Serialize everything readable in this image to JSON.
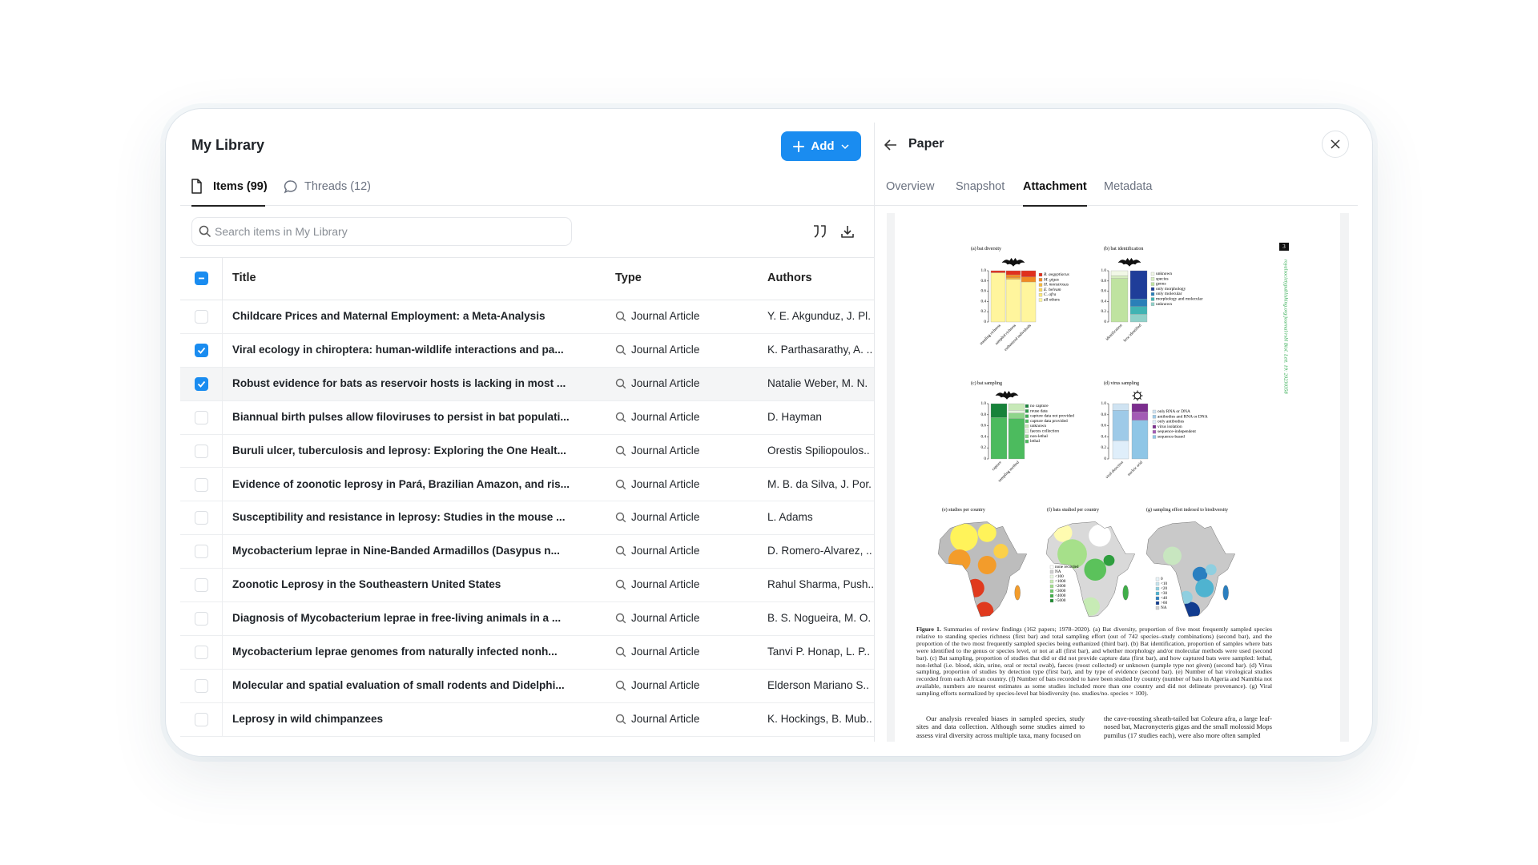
{
  "library": {
    "title": "My Library",
    "add_button": "Add",
    "tabs": [
      "Items (99)",
      "Threads (12)"
    ],
    "active_tab": 0,
    "search_placeholder": "Search items in My Library",
    "columns": [
      "Title",
      "Type",
      "Authors"
    ],
    "select_all_state": "partial",
    "hovered_row": 2,
    "rows": [
      {
        "title": "Childcare Prices and Maternal Employment: a Meta-Analysis",
        "type": "Journal Article",
        "authors": "Y. E. Akgunduz, J. Pl.",
        "checked": false
      },
      {
        "title": "Viral ecology in chiroptera: human-wildlife interactions and pa...",
        "type": "Journal Article",
        "authors": "K. Parthasarathy, A. ..",
        "checked": true
      },
      {
        "title": "Robust evidence for bats as reservoir hosts is lacking in most ...",
        "type": "Journal Article",
        "authors": "Natalie Weber, M. N.",
        "checked": true
      },
      {
        "title": "Biannual birth pulses allow filoviruses to persist in bat populati...",
        "type": "Journal Article",
        "authors": "D. Hayman",
        "checked": false
      },
      {
        "title": "Buruli ulcer, tuberculosis and leprosy: Exploring the One Healt...",
        "type": "Journal Article",
        "authors": "Orestis Spiliopoulos..",
        "checked": false
      },
      {
        "title": "Evidence of zoonotic leprosy in Pará, Brazilian Amazon, and ris...",
        "type": "Journal Article",
        "authors": "M. B. da Silva, J. Por.",
        "checked": false
      },
      {
        "title": "Susceptibility and resistance in leprosy: Studies in the mouse ...",
        "type": "Journal Article",
        "authors": "L. Adams",
        "checked": false
      },
      {
        "title": "Mycobacterium leprae in Nine-Banded Armadillos (Dasypus n...",
        "type": "Journal Article",
        "authors": "D. Romero-Alvarez, ..",
        "checked": false
      },
      {
        "title": "Zoonotic Leprosy in the Southeastern United States",
        "type": "Journal Article",
        "authors": "Rahul Sharma, Push..",
        "checked": false
      },
      {
        "title": "Diagnosis of Mycobacterium leprae in free-living animals in a ...",
        "type": "Journal Article",
        "authors": "B. S. Nogueira, M. O.",
        "checked": false
      },
      {
        "title": "Mycobacterium leprae genomes from naturally infected nonh...",
        "type": "Journal Article",
        "authors": "Tanvi P. Honap, L. P..",
        "checked": false
      },
      {
        "title": "Molecular and spatial evaluation of small rodents and Didelphi...",
        "type": "Journal Article",
        "authors": "Elderson Mariano S..",
        "checked": false
      },
      {
        "title": "Leprosy in wild chimpanzees",
        "type": "Journal Article",
        "authors": "K. Hockings, B. Mub..",
        "checked": false
      }
    ]
  },
  "panel": {
    "title": "Paper",
    "tabs": [
      "Overview",
      "Snapshot",
      "Attachment",
      "Metadata"
    ],
    "active_tab": 2
  },
  "pdf": {
    "page_number": "3",
    "side_text": "royalsocietypublishing.org/journal/rsbl   Biol. Lett. 19: 20230358",
    "y_tick_labels": [
      "1.0",
      "0.8",
      "0.6",
      "0.4",
      "0.2",
      "0"
    ],
    "charts": [
      {
        "label": "(a) bat diversity",
        "x_labels": [
          "standing richness",
          "sampled richness",
          "euthanized individuals"
        ],
        "legend": [
          {
            "label": "R. aegyptiacus",
            "color": "#e0301e"
          },
          {
            "label": "M. gigas",
            "color": "#f08a24"
          },
          {
            "label": "H. monstrosus",
            "color": "#f5b83d"
          },
          {
            "label": "E. helvum",
            "color": "#f9d65c"
          },
          {
            "label": "C. afra",
            "color": "#fbe77a"
          },
          {
            "label": "all others",
            "color": "#fff59d"
          }
        ]
      },
      {
        "label": "(b) bat identification",
        "x_labels": [
          "identification",
          "how identified"
        ],
        "legend": [
          {
            "label": "unknown",
            "color": "#f1f8e6"
          },
          {
            "label": "species",
            "color": "#d7eec0"
          },
          {
            "label": "genus",
            "color": "#bfe3a0"
          },
          {
            "label": "only morphology",
            "color": "#1f3d99"
          },
          {
            "label": "only molecular",
            "color": "#2a7fb8"
          },
          {
            "label": "morphology and molecular",
            "color": "#40b3b3"
          },
          {
            "label": "unknown",
            "color": "#8fd0c8"
          }
        ]
      },
      {
        "label": "(c) bat sampling",
        "x_labels": [
          "capture",
          "sampling method"
        ],
        "legend": [
          {
            "label": "no capture",
            "color": "#17823a"
          },
          {
            "label": "reuse data",
            "color": "#2e9e4a"
          },
          {
            "label": "capture data not provided",
            "color": "#3fae55"
          },
          {
            "label": "capture data provided",
            "color": "#4cbb5e"
          },
          {
            "label": "unknown",
            "color": "#c7e9b8"
          },
          {
            "label": "faeces collection",
            "color": "#e7f5df"
          },
          {
            "label": "non-lethal",
            "color": "#8fd58b"
          },
          {
            "label": "lethal",
            "color": "#4cbb5e"
          }
        ]
      },
      {
        "label": "(d) virus sampling",
        "x_labels": [
          "viral detection",
          "nucleic acid"
        ],
        "legend": [
          {
            "label": "only RNA or DNA",
            "color": "#cfe3f2"
          },
          {
            "label": "antibodies and RNA or DNA",
            "color": "#9ecae8"
          },
          {
            "label": "only antibodies",
            "color": "#dfeefa"
          },
          {
            "label": "virus isolation",
            "color": "#7b2d8e"
          },
          {
            "label": "sequence-independent",
            "color": "#a35bb5"
          },
          {
            "label": "sequence-based",
            "color": "#8fc6e6"
          }
        ]
      }
    ],
    "maps": [
      {
        "label": "(e) studies per country",
        "legend": []
      },
      {
        "label": "(f) bats studied per country",
        "legend": [
          {
            "label": "none recorded",
            "color": "#ffffff"
          },
          {
            "label": "NA",
            "color": "#d0d0d0"
          },
          {
            "label": "<100",
            "color": "#e9f7e2"
          },
          {
            "label": "<1000",
            "color": "#c7ebb5"
          },
          {
            "label": "<2000",
            "color": "#9fdc8b"
          },
          {
            "label": "<3000",
            "color": "#6cc96a"
          },
          {
            "label": "<4000",
            "color": "#3fae48"
          },
          {
            "label": ">5000",
            "color": "#1e8a30"
          }
        ]
      },
      {
        "label": "(g) sampling effort indexed to biodiversity",
        "legend": [
          {
            "label": "0",
            "color": "#e8f3f8"
          },
          {
            "label": "<10",
            "color": "#c5e4ee"
          },
          {
            "label": "<20",
            "color": "#8fcfe0"
          },
          {
            "label": "<30",
            "color": "#4fb3d0"
          },
          {
            "label": "<40",
            "color": "#2a7fc0"
          },
          {
            "label": ">60",
            "color": "#123c8f"
          },
          {
            "label": "NA",
            "color": "#d0d0d0"
          }
        ]
      }
    ],
    "caption_label": "Figure 1.",
    "caption": "Summaries of review findings (162 papers; 1978–2020). (a) Bat diversity, proportion of five most frequently sampled species relative to standing species richness (first bar) and total sampling effort (out of 742 species–study combinations) (second bar), and the proportion of the two most frequently sampled species being euthanized (third bar). (b) Bat identification, proportion of samples where bats were identified to the genus or species level, or not at all (first bar), and whether morphology and/or molecular methods were used (second bar). (c) Bat sampling, proportion of studies that did or did not provide capture data (first bar), and how captured bats were sampled: lethal, non-lethal (i.e. blood, skin, urine, oral or rectal swab), faeces (roost collected) or unknown (sample type not given) (second bar). (d) Virus sampling, proportion of studies by detection type (first bar), and by type of evidence (second bar). (e) Number of bat virological studies recorded from each African country. (f) Number of bats recorded to have been studied by country (number of bats in Algeria and Namibia not available, numbers are nearest estimates as some studies included more than one country and did not delineate provenance). (g) Viral sampling efforts normalized by species-level bat biodiversity (no. studies/no. species × 100).",
    "body_left": "Our analysis revealed biases in sampled species, study sites and data collection. Although some studies aimed to assess viral diversity across multiple taxa, many focused on",
    "body_right": "the cave-roosting sheath-tailed bat Coleura afra, a large leaf-nosed bat, Macronycteris gigas and the small molossid Mops pumilus (17 studies each), were also more often sampled"
  }
}
